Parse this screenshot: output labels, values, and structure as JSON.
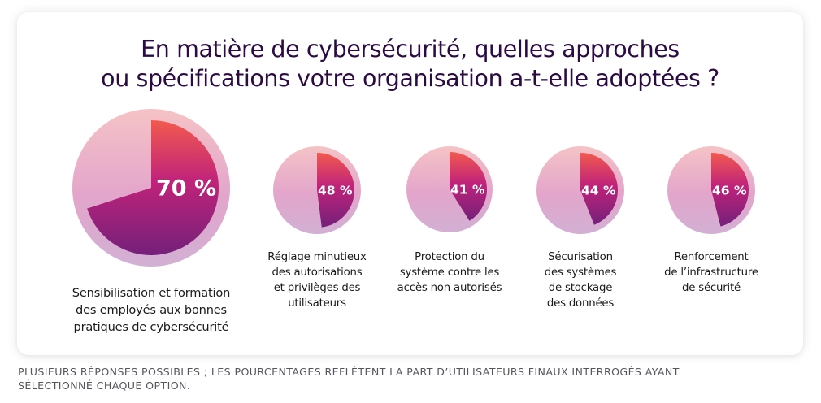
{
  "title": {
    "lines": [
      "En matière de cybersécurité, quelles approches",
      "ou spécifications votre organisation a-t-elle adoptées ?"
    ]
  },
  "colors": {
    "title": "#2b0b42",
    "slice_top": "#f25a4e",
    "slice_mid": "#c0237a",
    "slice_bottom": "#74207a",
    "disc_top": "#f5c3c6",
    "disc_mid": "#e3a5cb",
    "disc_bottom": "#d2b0d4"
  },
  "chart_data": {
    "type": "pie",
    "title": "En matière de cybersécurité, quelles approches ou spécifications votre organisation a-t-elle adoptées ?",
    "unit": "%",
    "items": [
      {
        "category": "Sensibilisation et formation des employés aux bonnes pratiques de cybersécurité",
        "label_lines": [
          "Sensibilisation et formation",
          "des employés aux bonnes",
          "pratiques de cybersécurité"
        ],
        "value": 70,
        "value_label": "70 %"
      },
      {
        "category": "Réglage minutieux des autorisations et privilèges des utilisateurs",
        "label_lines": [
          "Réglage minutieux",
          "des autorisations",
          "et privilèges des",
          "utilisateurs"
        ],
        "value": 48,
        "value_label": "48 %"
      },
      {
        "category": "Protection du système contre les accès non autorisés",
        "label_lines": [
          "Protection du",
          "système contre les",
          "accès non autorisés"
        ],
        "value": 41,
        "value_label": "41 %"
      },
      {
        "category": "Sécurisation des systèmes de stockage des données",
        "label_lines": [
          "Sécurisation",
          "des systèmes",
          "de stockage",
          "des données"
        ],
        "value": 44,
        "value_label": "44 %"
      },
      {
        "category": "Renforcement de l’infrastructure de sécurité",
        "label_lines": [
          "Renforcement",
          "de l’infrastructure",
          "de sécurité"
        ],
        "value": 46,
        "value_label": "46 %"
      }
    ]
  },
  "footnote": {
    "lines": [
      "PLUSIEURS RÉPONSES POSSIBLES ; LES POURCENTAGES REFLÈTENT LA PART D’UTILISATEURS FINAUX INTERROGÉS AYANT",
      "SÉLECTIONNÉ CHAQUE OPTION."
    ]
  }
}
